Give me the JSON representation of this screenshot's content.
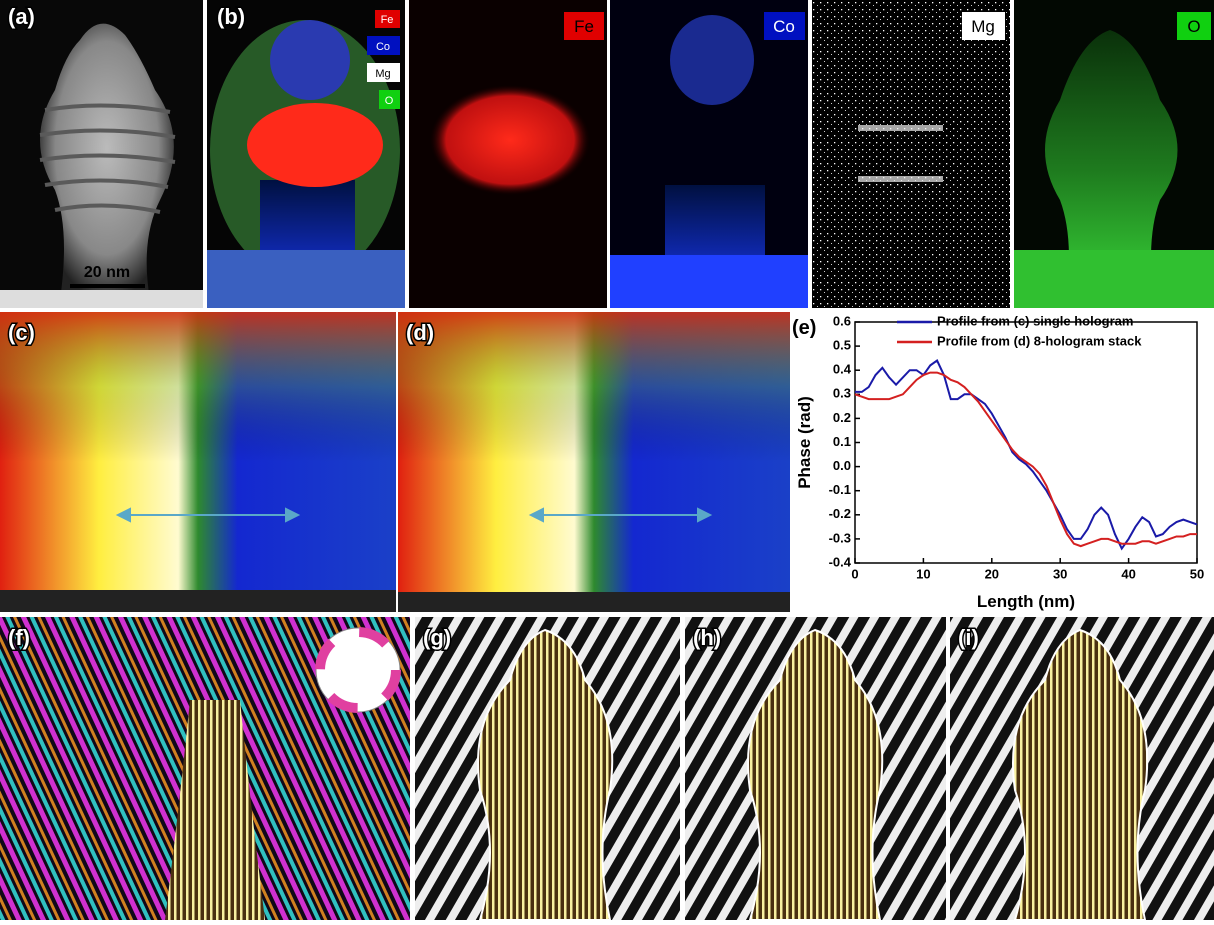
{
  "panel_labels": [
    "(a)",
    "(b)",
    "(c)",
    "(d)",
    "(e)",
    "(f)",
    "(g)",
    "(h)",
    "(i)"
  ],
  "scale_bar": "20 nm",
  "overlay_legend": [
    "Fe",
    "Co",
    "Mg",
    "O"
  ],
  "map_labels": [
    "Fe",
    "Co",
    "Mg",
    "O"
  ],
  "chart_data": {
    "type": "line",
    "x_label": "Length (nm)",
    "y_label": "Phase (rad)",
    "xlim": [
      0,
      50
    ],
    "ylim": [
      -0.4,
      0.6
    ],
    "xticks": [
      0,
      10,
      20,
      30,
      40,
      50
    ],
    "yticks": [
      -0.4,
      -0.3,
      -0.2,
      -0.1,
      {
        "value": 0,
        "label": "0.0"
      },
      0.1,
      0.2,
      0.3,
      0.4,
      0.5,
      0.6
    ],
    "x": [
      0,
      1,
      2,
      3,
      4,
      5,
      6,
      7,
      8,
      9,
      10,
      11,
      12,
      13,
      14,
      15,
      16,
      17,
      18,
      19,
      20,
      21,
      22,
      23,
      24,
      25,
      26,
      27,
      28,
      29,
      30,
      31,
      32,
      33,
      34,
      35,
      36,
      37,
      38,
      39,
      40,
      41,
      42,
      43,
      44,
      45,
      46,
      47,
      48,
      49,
      50
    ],
    "series": [
      {
        "name": "Profile from (c) single hologram",
        "color": "#1a1aa8",
        "values": [
          0.31,
          0.31,
          0.33,
          0.38,
          0.41,
          0.37,
          0.34,
          0.37,
          0.4,
          0.4,
          0.38,
          0.42,
          0.44,
          0.38,
          0.28,
          0.28,
          0.3,
          0.3,
          0.28,
          0.26,
          0.22,
          0.17,
          0.12,
          0.06,
          0.03,
          0.01,
          -0.02,
          -0.06,
          -0.1,
          -0.15,
          -0.2,
          -0.26,
          -0.3,
          -0.3,
          -0.26,
          -0.2,
          -0.17,
          -0.2,
          -0.28,
          -0.34,
          -0.3,
          -0.25,
          -0.21,
          -0.23,
          -0.29,
          -0.28,
          -0.25,
          -0.23,
          -0.22,
          -0.23,
          -0.24
        ]
      },
      {
        "name": "Profile from (d) 8-hologram stack",
        "color": "#d42020",
        "values": [
          0.3,
          0.29,
          0.28,
          0.28,
          0.28,
          0.28,
          0.29,
          0.3,
          0.33,
          0.36,
          0.38,
          0.39,
          0.39,
          0.38,
          0.36,
          0.35,
          0.33,
          0.3,
          0.27,
          0.23,
          0.19,
          0.15,
          0.11,
          0.07,
          0.04,
          0.02,
          0.0,
          -0.03,
          -0.08,
          -0.15,
          -0.22,
          -0.28,
          -0.32,
          -0.33,
          -0.32,
          -0.31,
          -0.3,
          -0.3,
          -0.31,
          -0.32,
          -0.32,
          -0.32,
          -0.31,
          -0.31,
          -0.32,
          -0.31,
          -0.3,
          -0.29,
          -0.29,
          -0.28,
          -0.28
        ]
      }
    ]
  }
}
